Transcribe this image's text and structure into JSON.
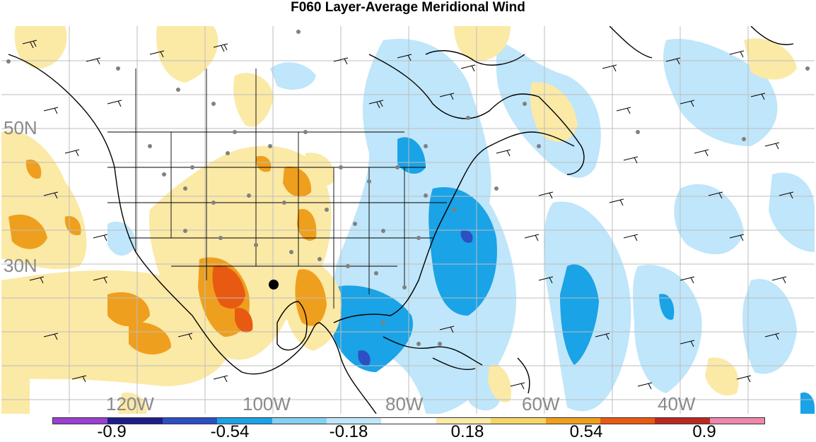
{
  "title": "F060 Layer-Average Meridional Wind",
  "latitude_labels": [
    "50N",
    "30N"
  ],
  "longitude_labels": [
    "120W",
    "100W",
    "80W",
    "60W",
    "40W"
  ],
  "colorbar": {
    "colors": [
      "#9b3fd1",
      "#1e1e8a",
      "#2d4fc4",
      "#1aa3e6",
      "#86d0f2",
      "#bfe6fa",
      "#ffffff",
      "#fbe9a6",
      "#f5d56a",
      "#ef9f1e",
      "#e85a12",
      "#b82a1e",
      "#ef86ad"
    ],
    "labels": [
      "-0.9",
      "-0.54",
      "-0.18",
      "0.18",
      "0.54",
      "0.9"
    ]
  },
  "legend_colors": {
    "strong_negative": "#1aa3e6",
    "weak_negative": "#bfe6fa",
    "weak_positive": "#f5d56a",
    "moderate_positive": "#ef9f1e",
    "strong_positive": "#e85a12"
  }
}
